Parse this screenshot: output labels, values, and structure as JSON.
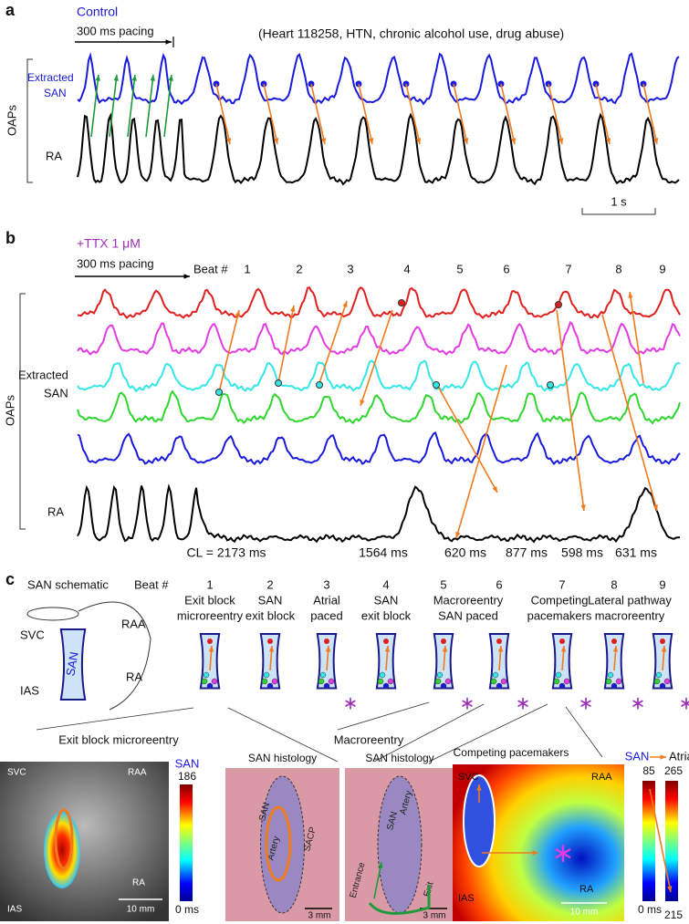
{
  "panel_a": {
    "label": "a",
    "condition": "Control",
    "pacing": "300 ms pacing",
    "heart_info": "(Heart 118258, HTN, chronic alcohol use, drug abuse)",
    "y_label": "OAPs",
    "trace_labels": [
      "Extracted",
      "SAN",
      "RA"
    ],
    "scale_bar": "1 s"
  },
  "panel_b": {
    "label": "b",
    "condition": "+TTX 1 μM",
    "pacing": "300 ms pacing",
    "beat_header": "Beat #",
    "beats": [
      "1",
      "2",
      "3",
      "4",
      "5",
      "6",
      "7",
      "8",
      "9"
    ],
    "y_label": "OAPs",
    "trace_labels": [
      "Extracted",
      "SAN",
      "RA"
    ],
    "cycle_lengths": [
      "CL = 2173 ms",
      "1564 ms",
      "620 ms",
      "877 ms",
      "598 ms",
      "631 ms"
    ]
  },
  "panel_c": {
    "label": "c",
    "schematic_title": "SAN schematic",
    "beat_header": "Beat #",
    "beats": [
      "1",
      "2",
      "3",
      "4",
      "5",
      "6",
      "7",
      "8",
      "9"
    ],
    "mechanisms": [
      [
        "Exit block",
        "microreentry"
      ],
      [
        "SAN",
        "exit block"
      ],
      [
        "Atrial",
        "paced"
      ],
      [
        "SAN",
        "exit block"
      ],
      [
        "Macroreentry",
        "SAN paced"
      ],
      [
        "Competing",
        "pacemakers"
      ],
      [
        "Lateral pathway",
        "macroreentry"
      ]
    ],
    "schematic_labels": [
      "SVC",
      "RAA",
      "SAN",
      "RA",
      "IAS"
    ],
    "group_labels": [
      "Exit block microreentry",
      "Macroreentry"
    ],
    "images": [
      {
        "labels": [
          "SVC",
          "RAA",
          "RA",
          "IAS"
        ],
        "scale": "10 mm",
        "colorbar": {
          "title": "SAN",
          "max": "186",
          "min": "0 ms"
        }
      },
      {
        "title": "SAN histology",
        "labels": [
          "SAN",
          "Artery",
          "SACP"
        ],
        "scale": "3 mm"
      },
      {
        "title": "SAN histology",
        "labels": [
          "SAN",
          "Artery",
          "Entrance",
          "Exit"
        ],
        "scale": "3 mm"
      },
      {
        "title": "Competing pacemakers",
        "labels": [
          "SVC",
          "RAA",
          "RA",
          "IAS"
        ],
        "scale": "10 mm",
        "colorbar": {
          "title": "SAN",
          "title2": "Atria",
          "max": "85",
          "min": "0 ms",
          "max2": "265",
          "min2": "215"
        }
      }
    ]
  }
}
